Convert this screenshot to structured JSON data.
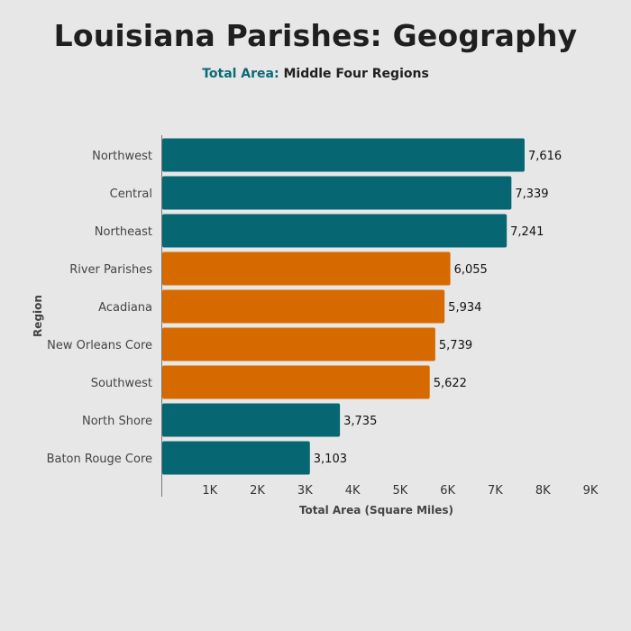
{
  "chart_data": {
    "type": "bar",
    "orientation": "horizontal",
    "title": "Louisiana Parishes: Geography",
    "subtitle_accent": "Total Area:",
    "subtitle_rest": " Middle Four Regions",
    "xlabel": "Total Area (Square Miles)",
    "ylabel": "Region",
    "xlim": [
      0,
      9000
    ],
    "x_ticks": [
      1000,
      2000,
      3000,
      4000,
      5000,
      6000,
      7000,
      8000,
      9000
    ],
    "x_tick_labels": [
      "1K",
      "2K",
      "3K",
      "4K",
      "5K",
      "6K",
      "7K",
      "8K",
      "9K"
    ],
    "grid": false,
    "categories": [
      "Northwest",
      "Central",
      "Northeast",
      "River Parishes",
      "Acadiana",
      "New Orleans Core",
      "Southwest",
      "North Shore",
      "Baton Rouge Core"
    ],
    "values": [
      7616,
      7339,
      7241,
      6055,
      5934,
      5739,
      5622,
      3735,
      3103
    ],
    "value_labels": [
      "7,616",
      "7,339",
      "7,241",
      "6,055",
      "5,934",
      "5,739",
      "5,622",
      "3,735",
      "3,103"
    ],
    "highlighted": [
      false,
      false,
      false,
      true,
      true,
      true,
      true,
      false,
      false
    ],
    "colors": {
      "default": "#066672",
      "highlight": "#d66a00",
      "accent_text": "#0b6a78",
      "axis": "#777777"
    }
  }
}
